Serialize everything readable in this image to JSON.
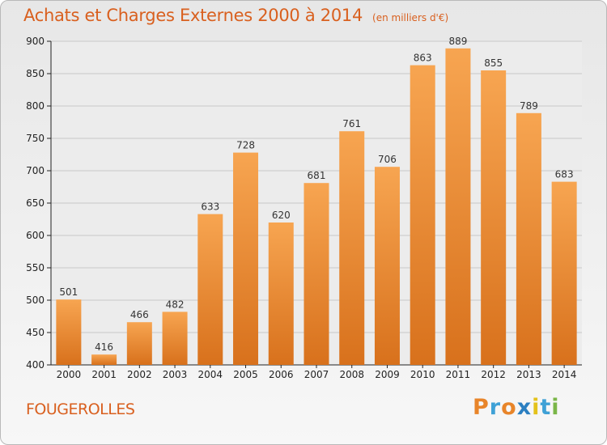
{
  "chart_data": {
    "type": "bar",
    "title": "Achats et Charges Externes 2000 à 2014",
    "subtitle": "(en milliers d'€)",
    "categories": [
      "2000",
      "2001",
      "2002",
      "2003",
      "2004",
      "2005",
      "2006",
      "2007",
      "2008",
      "2009",
      "2010",
      "2011",
      "2012",
      "2013",
      "2014"
    ],
    "values": [
      501,
      416,
      466,
      482,
      633,
      728,
      620,
      681,
      761,
      706,
      863,
      889,
      855,
      789,
      683
    ],
    "ylim": [
      400,
      900
    ],
    "yticks": [
      400,
      450,
      500,
      550,
      600,
      650,
      700,
      750,
      800,
      850,
      900
    ],
    "grid": true,
    "bar_color": "#e8852a",
    "xlabel": "",
    "ylabel": ""
  },
  "commune": "FOUGEROLLES",
  "logo": {
    "text": "Proxiti",
    "letter_colors": [
      "#e8852a",
      "#3fa1d6",
      "#e8852a",
      "#2b7fc1",
      "#e4c21b",
      "#3fa1d6",
      "#7ab648"
    ]
  },
  "colors": {
    "title": "#d9601f",
    "axis": "#222222"
  }
}
